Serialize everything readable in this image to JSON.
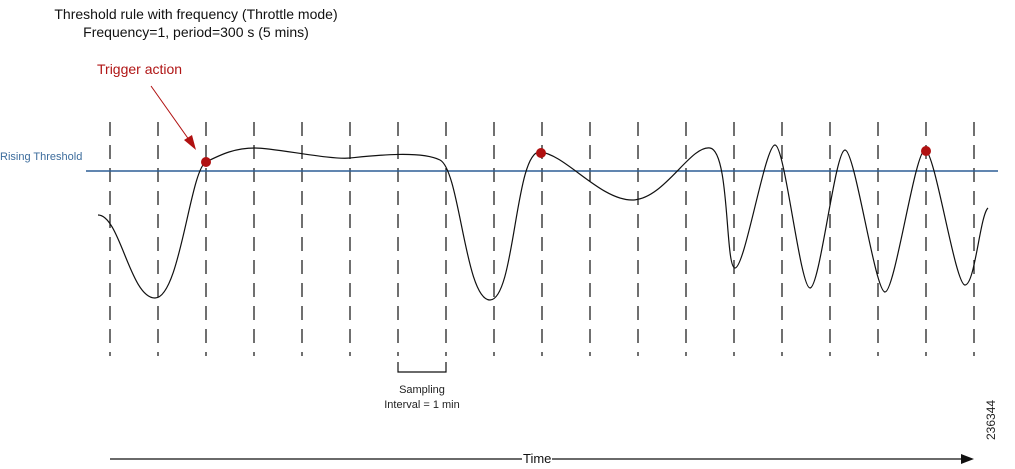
{
  "title": {
    "line1": "Threshold rule with frequency (Throttle mode)",
    "line2": "Frequency=1, period=300 s (5 mins)"
  },
  "annotations": {
    "trigger_action": "Trigger action",
    "rising_threshold": "Rising Threshold",
    "sampling_line1": "Sampling",
    "sampling_line2": "Interval = 1 min"
  },
  "axis": {
    "time_label": "Time"
  },
  "figure_id": "236344",
  "colors": {
    "threshold": "#2d5f96",
    "trigger": "#b01010",
    "curve": "#111111"
  },
  "sampling_interval_count": 19,
  "trigger_points": 3
}
